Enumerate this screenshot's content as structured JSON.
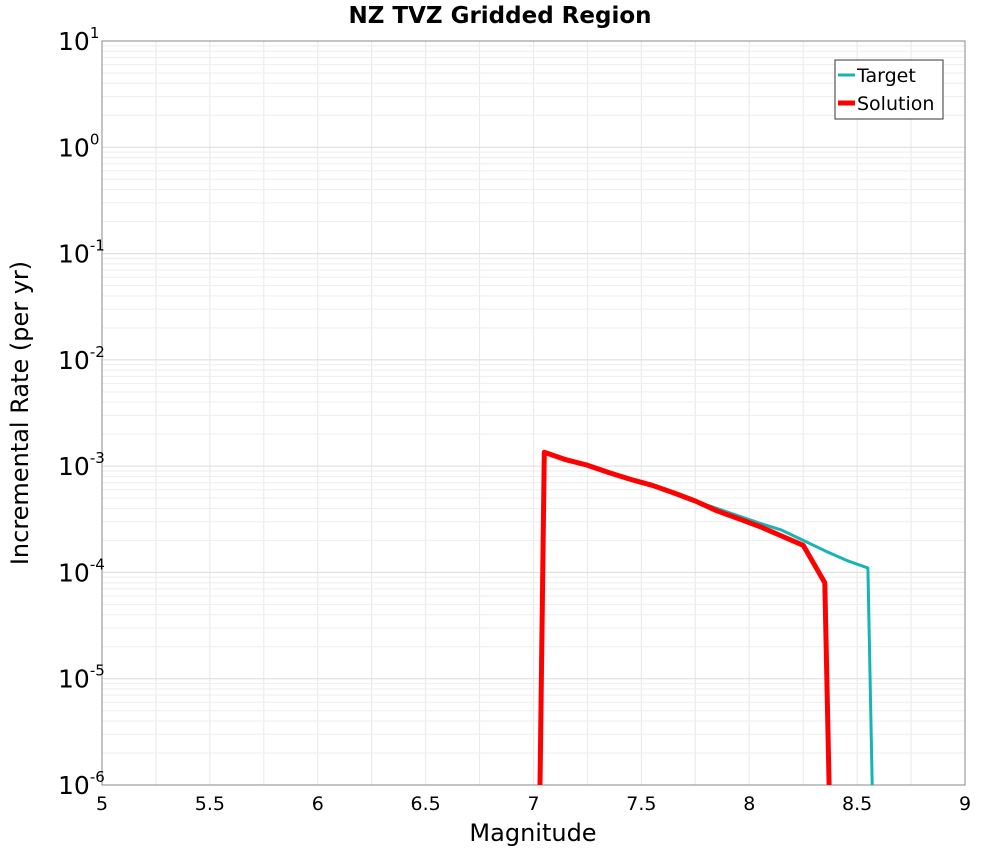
{
  "chart_data": {
    "type": "line",
    "title": "NZ TVZ Gridded Region",
    "xlabel": "Magnitude",
    "ylabel": "Incremental Rate (per yr)",
    "xlim": [
      5,
      9
    ],
    "ylim": [
      1e-06,
      10
    ],
    "yscale": "log",
    "grid": true,
    "legend_position": "top-right",
    "x_ticks": [
      "5",
      "5.5",
      "6",
      "6.5",
      "7",
      "7.5",
      "8",
      "8.5",
      "9"
    ],
    "y_ticks": [
      {
        "base": "10",
        "exp": "1"
      },
      {
        "base": "10",
        "exp": "0"
      },
      {
        "base": "10",
        "exp": "-1"
      },
      {
        "base": "10",
        "exp": "-2"
      },
      {
        "base": "10",
        "exp": "-3"
      },
      {
        "base": "10",
        "exp": "-4"
      },
      {
        "base": "10",
        "exp": "-5"
      },
      {
        "base": "10",
        "exp": "-6"
      }
    ],
    "series": [
      {
        "name": "Target",
        "color": "#18b4b4",
        "x": [
          7.05,
          7.15,
          7.25,
          7.35,
          7.45,
          7.55,
          7.65,
          7.75,
          7.85,
          7.95,
          8.05,
          8.15,
          8.25,
          8.35,
          8.45,
          8.55,
          8.57
        ],
        "y": [
          0.00135,
          0.00115,
          0.00102,
          0.00087,
          0.00075,
          0.00066,
          0.00056,
          0.00047,
          0.0004,
          0.00034,
          0.00029,
          0.00025,
          0.0002,
          0.00016,
          0.00013,
          0.00011,
          1e-06
        ]
      },
      {
        "name": "Solution",
        "color": "#ff0000",
        "x": [
          7.03,
          7.05,
          7.15,
          7.25,
          7.35,
          7.45,
          7.55,
          7.65,
          7.75,
          7.85,
          7.95,
          8.05,
          8.15,
          8.25,
          8.35,
          8.37
        ],
        "y": [
          1e-06,
          0.00135,
          0.00115,
          0.00102,
          0.00087,
          0.00075,
          0.00066,
          0.00056,
          0.00047,
          0.00038,
          0.00032,
          0.00027,
          0.00022,
          0.00018,
          8e-05,
          1e-06
        ]
      }
    ]
  }
}
